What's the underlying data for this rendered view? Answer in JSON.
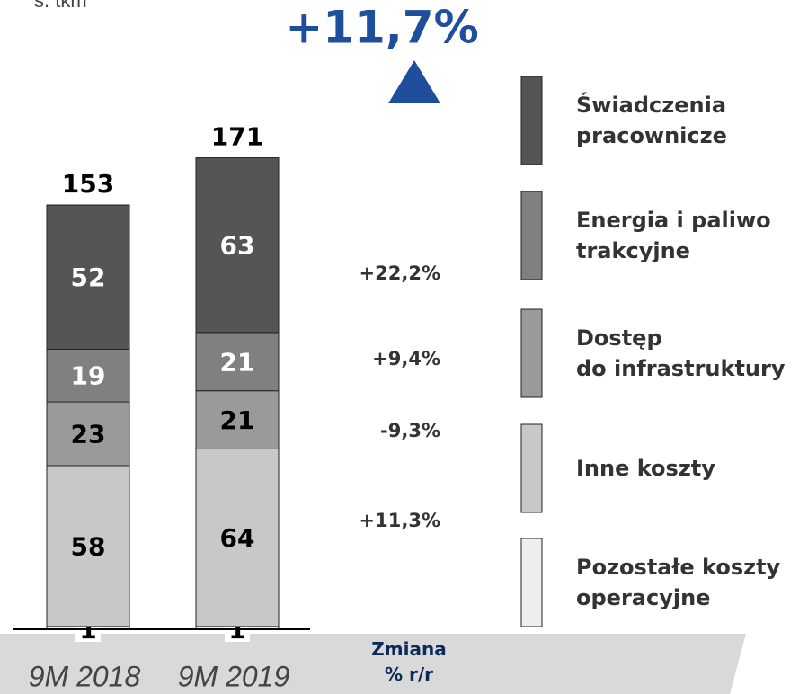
{
  "chart_data": {
    "type": "stacked_bar",
    "subtitle": "s. tkm",
    "headline": "+11,7%",
    "categories": [
      "9M 2018",
      "9M 2019"
    ],
    "series": [
      {
        "name": "Pozostałe koszty\noperacyjne",
        "color": "#eeeeee",
        "values": [
          1,
          1
        ]
      },
      {
        "name": "Inne koszty",
        "color": "#c8c8c8",
        "values": [
          58,
          64
        ]
      },
      {
        "name": "Dostęp\ndo infrastruktury",
        "color": "#9a9a9a",
        "values": [
          23,
          21
        ]
      },
      {
        "name": "Energia i paliwo\ntrakcyjne",
        "color": "#808080",
        "values": [
          19,
          21
        ]
      },
      {
        "name": "Świadczenia\npracownicze",
        "color": "#555555",
        "values": [
          52,
          63
        ]
      }
    ],
    "totals": [
      153,
      171
    ],
    "change_title": "Zmiana\n% r/r",
    "change_labels": [
      "+11,3%",
      "-9,3%",
      "+9,4%",
      "+22,2%"
    ]
  }
}
